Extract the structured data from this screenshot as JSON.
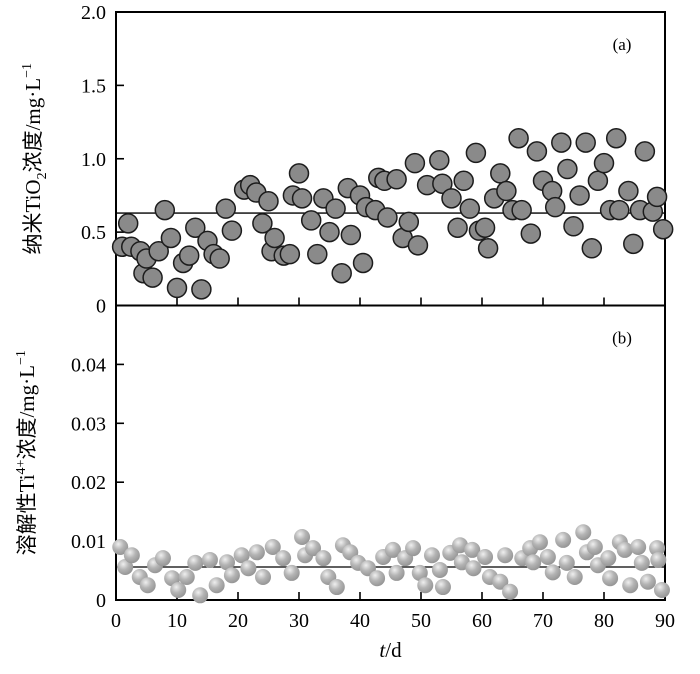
{
  "chart_data": [
    {
      "type": "scatter",
      "panel_label": "(a)",
      "ylabel": "纳米TiO2浓度/mg·L−1",
      "ylabel_parts": [
        {
          "t": "纳米TiO"
        },
        {
          "t": "2",
          "sub": true
        },
        {
          "t": "浓度/mg·L"
        },
        {
          "t": "−1",
          "sup": true
        }
      ],
      "ylim": [
        0,
        2.0
      ],
      "yticks": [
        "0",
        "0.5",
        "1.0",
        "1.5",
        "2.0"
      ],
      "ytick_values": [
        0,
        0.5,
        1.0,
        1.5,
        2.0
      ],
      "mean_line": 0.63,
      "marker": "flat-gray-circle",
      "x": [
        1,
        2,
        2.5,
        4,
        4.5,
        5,
        6,
        7,
        8,
        9,
        10,
        11,
        12,
        13,
        14,
        15,
        16,
        17,
        18,
        19,
        21,
        22,
        23,
        24,
        25,
        25.5,
        26,
        27.5,
        28.5,
        29,
        30,
        30.5,
        32,
        33,
        34,
        35,
        36,
        37,
        38,
        38.5,
        40,
        40.5,
        41,
        42.5,
        43,
        44,
        44.5,
        46,
        47,
        48,
        49,
        49.5,
        51,
        53,
        53.5,
        55,
        56,
        57,
        58,
        59,
        59.5,
        60.5,
        61,
        62,
        63,
        64,
        65,
        66,
        66.5,
        68,
        69,
        70,
        71.5,
        72,
        73,
        74,
        75,
        76,
        77,
        78,
        79,
        80,
        81,
        82,
        82.5,
        84,
        84.8,
        85.9,
        86.7,
        88,
        88.7,
        89.7
      ],
      "y": [
        0.4,
        0.56,
        0.4,
        0.37,
        0.22,
        0.32,
        0.19,
        0.37,
        0.65,
        0.46,
        0.12,
        0.29,
        0.34,
        0.53,
        0.11,
        0.44,
        0.35,
        0.32,
        0.66,
        0.51,
        0.79,
        0.82,
        0.77,
        0.56,
        0.71,
        0.37,
        0.46,
        0.34,
        0.35,
        0.75,
        0.9,
        0.73,
        0.58,
        0.35,
        0.73,
        0.5,
        0.66,
        0.22,
        0.8,
        0.48,
        0.75,
        0.29,
        0.67,
        0.65,
        0.87,
        0.85,
        0.6,
        0.86,
        0.46,
        0.57,
        0.97,
        0.41,
        0.82,
        0.99,
        0.83,
        0.73,
        0.53,
        0.85,
        0.66,
        1.04,
        0.51,
        0.53,
        0.39,
        0.73,
        0.9,
        0.78,
        0.65,
        1.14,
        0.65,
        0.49,
        1.05,
        0.85,
        0.78,
        0.67,
        1.11,
        0.93,
        0.54,
        0.75,
        1.11,
        0.39,
        0.85,
        0.97,
        0.65,
        1.14,
        0.65,
        0.78,
        0.42,
        0.65,
        1.05,
        0.64,
        0.74,
        0.52
      ]
    },
    {
      "type": "scatter",
      "panel_label": "(b)",
      "ylabel": "溶解性Ti4+浓度/mg·L−1",
      "ylabel_parts": [
        {
          "t": "溶解性Ti"
        },
        {
          "t": "4+",
          "sup": true
        },
        {
          "t": "浓度/mg·L"
        },
        {
          "t": "−1",
          "sup": true
        }
      ],
      "ylim": [
        0,
        0.05
      ],
      "yticks": [
        "0",
        "0.01",
        "0.02",
        "0.03",
        "0.04"
      ],
      "ytick_values": [
        0,
        0.01,
        0.02,
        0.03,
        0.04
      ],
      "mean_line": 0.0056,
      "marker": "gray-sphere",
      "x": [
        0.7,
        1.5,
        2.6,
        3.9,
        5.2,
        6.4,
        7.7,
        9.2,
        10.2,
        11.6,
        13,
        13.8,
        15.4,
        16.5,
        18.2,
        19,
        20.6,
        21.7,
        23.1,
        24.1,
        25.7,
        27.4,
        28.8,
        30.5,
        31,
        32.3,
        34,
        34.8,
        36.2,
        37.2,
        38.4,
        39.7,
        41.3,
        42.8,
        43.8,
        45.4,
        46,
        47.4,
        48.7,
        49.8,
        50.7,
        51.8,
        53.1,
        53.6,
        54.8,
        56.4,
        56.7,
        58.4,
        58.6,
        60.5,
        61.3,
        63,
        63.8,
        64.6,
        66.6,
        67.9,
        68.4,
        69.5,
        70.8,
        71.6,
        73.3,
        73.9,
        75.2,
        76.6,
        77.2,
        78.5,
        79,
        80.7,
        81,
        82.6,
        83.4,
        84.3,
        85.6,
        86.2,
        87.2,
        88.7,
        88.9,
        89.5
      ],
      "y": [
        0.009,
        0.0056,
        0.0076,
        0.0039,
        0.0025,
        0.0059,
        0.0071,
        0.0037,
        0.0017,
        0.0039,
        0.0063,
        0.0008,
        0.0068,
        0.0025,
        0.0064,
        0.0042,
        0.0076,
        0.0054,
        0.0081,
        0.0039,
        0.009,
        0.0071,
        0.0046,
        0.0107,
        0.0076,
        0.0088,
        0.0071,
        0.0039,
        0.0022,
        0.0093,
        0.0081,
        0.0063,
        0.0054,
        0.0037,
        0.0073,
        0.0085,
        0.0046,
        0.0071,
        0.0088,
        0.0046,
        0.0025,
        0.0076,
        0.0051,
        0.0022,
        0.008,
        0.0093,
        0.0064,
        0.0085,
        0.0054,
        0.0073,
        0.0039,
        0.0031,
        0.0076,
        0.0014,
        0.0071,
        0.0088,
        0.0064,
        0.0098,
        0.0073,
        0.0047,
        0.0102,
        0.0063,
        0.0039,
        0.0115,
        0.0081,
        0.009,
        0.0059,
        0.0071,
        0.0037,
        0.0098,
        0.0085,
        0.0025,
        0.009,
        0.0063,
        0.0031,
        0.0088,
        0.0068,
        0.0017
      ]
    }
  ],
  "x_axis": {
    "label": "t/d",
    "label_parts": [
      {
        "t": "t",
        "italic": true
      },
      {
        "t": "/d"
      }
    ],
    "tick_labels": [
      "0",
      "10",
      "20",
      "30",
      "40",
      "50",
      "60",
      "70",
      "80",
      "90"
    ],
    "tick_values": [
      0,
      10,
      20,
      30,
      40,
      50,
      60,
      70,
      80,
      90
    ],
    "range": [
      0,
      90
    ]
  },
  "colors": {
    "background": "#ffffff",
    "axis": "#000000",
    "mean_line": "#000000",
    "marker_fill": "#8a8a8a",
    "marker_stroke": "#1c1c1c",
    "sphere_highlight": "#efefef",
    "sphere_mid": "#b4b4b4",
    "sphere_edge": "#8d8d8d"
  }
}
